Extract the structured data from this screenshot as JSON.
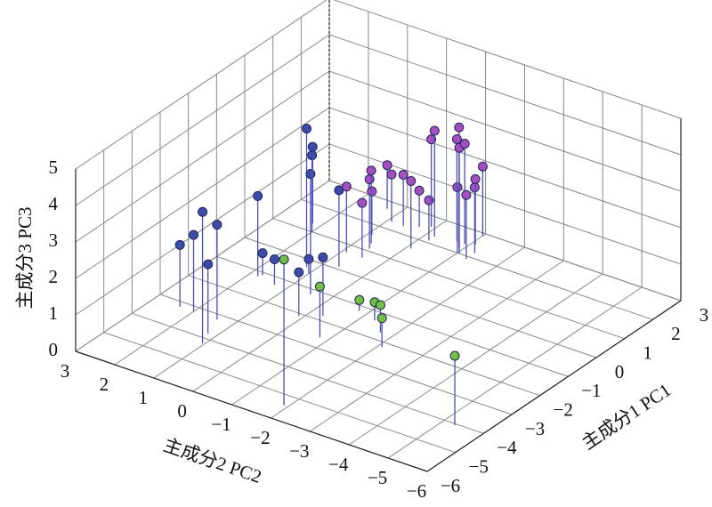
{
  "chart_data": {
    "type": "scatter3d",
    "xlabel": "主成分1 PC1",
    "ylabel": "主成分2 PC2",
    "zlabel": "主成分3 PC3",
    "xlim": [
      -6,
      3
    ],
    "ylim": [
      -6,
      3
    ],
    "zlim": [
      0,
      5
    ],
    "xticks": [
      {
        "value": -6,
        "label": "−6"
      },
      {
        "value": -5,
        "label": "−5"
      },
      {
        "value": -4,
        "label": "−4"
      },
      {
        "value": -3,
        "label": "−3"
      },
      {
        "value": -2,
        "label": "−2"
      },
      {
        "value": -1,
        "label": "−1"
      },
      0,
      1,
      2,
      3
    ],
    "yticks": [
      {
        "value": -6,
        "label": "−6"
      },
      {
        "value": -5,
        "label": "−5"
      },
      {
        "value": -4,
        "label": "−4"
      },
      {
        "value": -3,
        "label": "−3"
      },
      {
        "value": -2,
        "label": "−2"
      },
      {
        "value": -1,
        "label": "−1"
      },
      0,
      1,
      2,
      3
    ],
    "zticks": [
      0,
      1,
      2,
      3,
      4,
      5
    ],
    "grid": true,
    "stem_color": "#4b4fb5",
    "series": [
      {
        "color": "#3e4aa8",
        "x": [
          -3.2,
          -3.2,
          -4.2,
          -3.8,
          -3.2,
          -1.2,
          -1.1,
          -1.3,
          -2.1,
          -0.3,
          -0.5,
          -1.2,
          1.0,
          1.3,
          -1.8,
          0.1
        ],
        "y": [
          2.35,
          2.0,
          1.05,
          1.2,
          1.4,
          1.8,
          1.75,
          1.3,
          0.1,
          1.2,
          1.0,
          0.45,
          2.0,
          2.2,
          -0.3,
          0.66
        ],
        "z": [
          1.7,
          2.1,
          3.6,
          1.9,
          2.6,
          2.2,
          0.6,
          0.7,
          1.2,
          3.8,
          0.4,
          3.3,
          2.1,
          2.1,
          1.6,
          2.1
        ]
      },
      {
        "color": "#a54fbf",
        "x": [
          0.7,
          0.7,
          1.1,
          1.6,
          1.3,
          2.7,
          2.3,
          2.3,
          1.6,
          2.45,
          2.1,
          2.6,
          2.3,
          2.0,
          2.2,
          2.4,
          2.0,
          2.4,
          1.9,
          2.2,
          2.5,
          2.9
        ],
        "y": [
          0.9,
          0.5,
          0.6,
          0.9,
          0.7,
          1.3,
          0.9,
          0.6,
          -0.1,
          0.3,
          -0.2,
          0.1,
          -0.2,
          -1.0,
          -0.9,
          -0.7,
          -1.05,
          -0.9,
          -1.3,
          -1.3,
          -1.1,
          -1.0
        ],
        "z": [
          1.8,
          1.5,
          1.9,
          1.2,
          2.0,
          1.2,
          1.3,
          1.4,
          1.85,
          1.0,
          1.1,
          2.4,
          2.9,
          1.8,
          3.3,
          2.8,
          2.9,
          2.75,
          1.75,
          1.8,
          1.8,
          1.9
        ]
      },
      {
        "color": "#72c043",
        "x": [
          -5.4,
          -2.6,
          -1.2,
          -1.35,
          -1.7,
          -2.2,
          -4.05
        ],
        "y": [
          -1.9,
          -0.8,
          -0.8,
          -1.3,
          -1.7,
          -2.1,
          -5.3
        ],
        "z": [
          4.0,
          1.4,
          0.3,
          0.5,
          0.75,
          0.8,
          1.9
        ]
      }
    ]
  }
}
